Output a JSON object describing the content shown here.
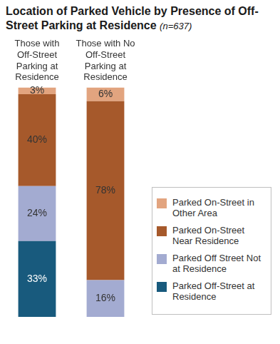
{
  "chart_data": {
    "type": "bar",
    "title": "Location of Parked Vehicle by Presence of Off-Street Parking at Residence",
    "subtitle": "(n=637)",
    "categories": [
      "Those with Off-Street Parking at Residence",
      "Those with No Off-Street Parking at Residence"
    ],
    "series": [
      {
        "name": "Parked Off-Street at Residence",
        "color": "#185a7d",
        "values": [
          33,
          null
        ],
        "value_labels": [
          "33%",
          null
        ]
      },
      {
        "name": "Parked Off Street Not at Residence",
        "color": "#a3abd1",
        "values": [
          24,
          16
        ],
        "value_labels": [
          "24%",
          "16%"
        ]
      },
      {
        "name": "Parked On-Street Near Residence",
        "color": "#a6592b",
        "values": [
          40,
          78
        ],
        "value_labels": [
          "40%",
          "78%"
        ]
      },
      {
        "name": "Parked On-Street in Other Area",
        "color": "#e2a47f",
        "values": [
          3,
          6
        ],
        "value_labels": [
          "3%",
          "6%"
        ]
      }
    ],
    "stacked": true,
    "data_labels": true,
    "legend": "right",
    "grid": false,
    "tick_labels": "x",
    "ylim": [
      0,
      100
    ]
  }
}
